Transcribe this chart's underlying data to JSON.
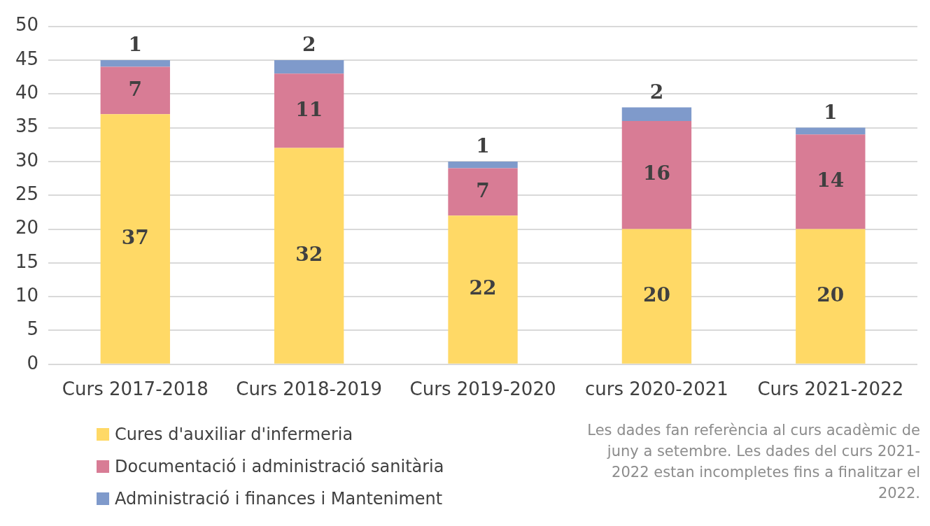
{
  "chart_data": {
    "type": "bar",
    "stacked": true,
    "categories": [
      "Curs 2017-2018",
      "Curs 2018-2019",
      "Curs 2019-2020",
      "curs 2020-2021",
      "Curs 2021-2022"
    ],
    "series": [
      {
        "name": "Cures d'auxiliar d'infermeria",
        "color": "#ffd966",
        "values": [
          37,
          32,
          22,
          20,
          20
        ]
      },
      {
        "name": "Documentació i administració sanitària",
        "color": "#d87c95",
        "values": [
          7,
          11,
          7,
          16,
          14
        ]
      },
      {
        "name": "Administració i finances i Manteniment",
        "color": "#7f9acb",
        "values": [
          1,
          2,
          1,
          2,
          1
        ]
      }
    ],
    "ylim": [
      0,
      50
    ],
    "yticks": [
      0,
      5,
      10,
      15,
      20,
      25,
      30,
      35,
      40,
      45,
      50
    ],
    "grid": "y",
    "legend": "bottom left",
    "data_labels": true,
    "annotations": [
      "Les dades fan referència al curs acadèmic de juny a setembre. Les dades del curs 2021-2022 estan incompletes fins a finalitzar el 2022."
    ]
  }
}
